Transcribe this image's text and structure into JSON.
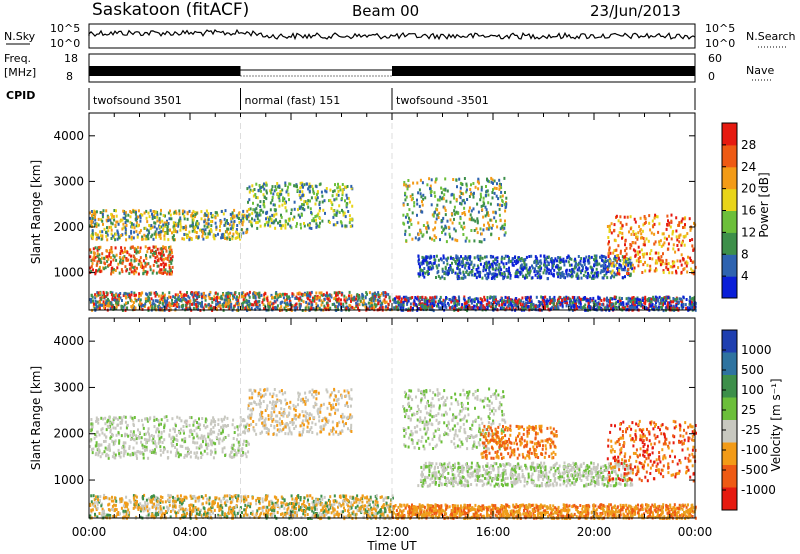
{
  "header": {
    "station": "Saskatoon (fitACF)",
    "beam": "Beam 00",
    "date": "23/Jun/2013"
  },
  "summary_panels": {
    "nsky_label": "N.Sky",
    "nsearch_label": "N.Search",
    "noise_ticks": [
      "10^5",
      "10^0"
    ],
    "freq_label": [
      "Freq.",
      "[MHz]"
    ],
    "freq_ticks": [
      "18",
      "8"
    ],
    "nave_label": "Nave",
    "nave_ticks": [
      "60",
      "0"
    ],
    "cpid_label": "CPID",
    "cpid_segments": [
      {
        "label": "twofsound 3501",
        "start_hour": 0,
        "end_hour": 6
      },
      {
        "label": "normal (fast) 151",
        "start_hour": 6,
        "end_hour": 12
      },
      {
        "label": "twofsound -3501",
        "start_hour": 12,
        "end_hour": 24
      }
    ]
  },
  "x_axis": {
    "label": "Time UT",
    "ticks": [
      "00:00",
      "04:00",
      "08:00",
      "12:00",
      "16:00",
      "20:00",
      "00:00"
    ]
  },
  "chart_data": [
    {
      "type": "heatmap",
      "name": "power",
      "ylabel": "Slant Range [km]",
      "yticks": [
        1000,
        2000,
        3000,
        4000
      ],
      "ylim": [
        180,
        4500
      ],
      "xlim_hours": [
        0,
        24
      ],
      "colorbar": {
        "label": "Power [dB]",
        "tick_labels": [
          "4",
          "8",
          "12",
          "16",
          "20",
          "24",
          "28"
        ],
        "colors": [
          "#0a1fd8",
          "#2e63b0",
          "#3d8f4a",
          "#6cbf3a",
          "#e8d419",
          "#f39b17",
          "#ee5a14",
          "#e61a10"
        ]
      },
      "scatter_bands": [
        {
          "start_hour": 0.0,
          "end_hour": 6.3,
          "min_km": 1750,
          "max_km": 2400,
          "colors": [
            "#2e63b0",
            "#3d8f4a",
            "#e8d419",
            "#f39b17"
          ]
        },
        {
          "start_hour": 0.0,
          "end_hour": 3.3,
          "min_km": 1000,
          "max_km": 1600,
          "colors": [
            "#f39b17",
            "#ee5a14",
            "#e61a10",
            "#3d8f4a"
          ]
        },
        {
          "start_hour": 6.2,
          "end_hour": 10.4,
          "min_km": 2000,
          "max_km": 3000,
          "colors": [
            "#3d8f4a",
            "#6cbf3a",
            "#e8d419",
            "#2e63b0"
          ]
        },
        {
          "start_hour": 0.0,
          "end_hour": 12.0,
          "min_km": 200,
          "max_km": 600,
          "colors": [
            "#2e63b0",
            "#3d8f4a",
            "#f39b17",
            "#e61a10"
          ]
        },
        {
          "start_hour": 12.4,
          "end_hour": 16.5,
          "min_km": 1700,
          "max_km": 3100,
          "colors": [
            "#2e63b0",
            "#3d8f4a",
            "#6cbf3a",
            "#f39b17"
          ]
        },
        {
          "start_hour": 13.0,
          "end_hour": 21.5,
          "min_km": 900,
          "max_km": 1400,
          "colors": [
            "#0a1fd8",
            "#2e63b0",
            "#3d8f4a"
          ]
        },
        {
          "start_hour": 20.5,
          "end_hour": 24.0,
          "min_km": 1000,
          "max_km": 2300,
          "colors": [
            "#f39b17",
            "#ee5a14",
            "#e61a10",
            "#e8d419"
          ]
        },
        {
          "start_hour": 12.0,
          "end_hour": 24.0,
          "min_km": 200,
          "max_km": 500,
          "colors": [
            "#2e63b0",
            "#0a1fd8",
            "#3d8f4a",
            "#e61a10"
          ]
        }
      ]
    },
    {
      "type": "heatmap",
      "name": "velocity",
      "ylabel": "Slant Range [km]",
      "yticks": [
        1000,
        2000,
        3000,
        4000
      ],
      "ylim": [
        180,
        4500
      ],
      "xlim_hours": [
        0,
        24
      ],
      "colorbar": {
        "label": "Velocity [m s⁻¹]",
        "tick_labels": [
          "1000",
          "500",
          "100",
          "25",
          "-25",
          "-100",
          "-500",
          "-1000"
        ],
        "colors": [
          "#1f3fb0",
          "#2e73a0",
          "#3d8f4a",
          "#6cbf3a",
          "#c8c8c0",
          "#f39b17",
          "#ee5a14",
          "#e61a10"
        ]
      },
      "scatter_bands": [
        {
          "start_hour": 0.0,
          "end_hour": 6.3,
          "min_km": 1500,
          "max_km": 2400,
          "colors": [
            "#c8c8c0",
            "#c8c8c0",
            "#c8c8c0",
            "#6cbf3a"
          ]
        },
        {
          "start_hour": 6.2,
          "end_hour": 10.4,
          "min_km": 2000,
          "max_km": 3000,
          "colors": [
            "#c8c8c0",
            "#c8c8c0",
            "#f39b17"
          ]
        },
        {
          "start_hour": 0.0,
          "end_hour": 12.0,
          "min_km": 200,
          "max_km": 700,
          "colors": [
            "#f39b17",
            "#e8a020",
            "#3d8f4a",
            "#c8c8c0"
          ]
        },
        {
          "start_hour": 12.4,
          "end_hour": 16.5,
          "min_km": 1700,
          "max_km": 3000,
          "colors": [
            "#c8c8c0",
            "#c8c8c0",
            "#6cbf3a"
          ]
        },
        {
          "start_hour": 15.5,
          "end_hour": 18.5,
          "min_km": 1500,
          "max_km": 2200,
          "colors": [
            "#f39b17",
            "#ee5a14"
          ]
        },
        {
          "start_hour": 13.0,
          "end_hour": 21.5,
          "min_km": 900,
          "max_km": 1400,
          "colors": [
            "#c8c8c0",
            "#c8c8c0",
            "#6cbf3a"
          ]
        },
        {
          "start_hour": 20.5,
          "end_hour": 24.0,
          "min_km": 1000,
          "max_km": 2300,
          "colors": [
            "#ee5a14",
            "#f39b17",
            "#e61a10"
          ]
        },
        {
          "start_hour": 12.0,
          "end_hour": 24.0,
          "min_km": 200,
          "max_km": 500,
          "colors": [
            "#f39b17",
            "#e8a020",
            "#ee5a14"
          ]
        }
      ]
    }
  ]
}
